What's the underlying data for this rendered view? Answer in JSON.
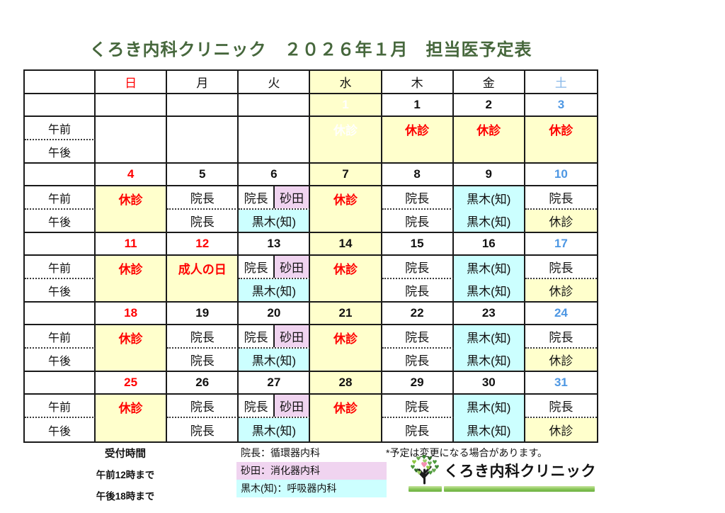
{
  "title": "くろき内科クリニック　２０２６年１月　担当医予定表",
  "colors": {
    "title_green": "#46673C",
    "closed_red": "#FF0000",
    "saturday_blue": "#4D97E3",
    "saturday_header_blue": "#87B7E8",
    "wednesday_yellow": "#FFFFCC",
    "kuroki_cyan": "#CCFFFF",
    "sunada_pink": "#F0D4F0",
    "ghost_white": "#FFFFFF"
  },
  "calendar": {
    "day_headers": [
      {
        "label": "日",
        "style": "sun"
      },
      {
        "label": "月"
      },
      {
        "label": "火"
      },
      {
        "label": "水",
        "bg": "yellow"
      },
      {
        "label": "木"
      },
      {
        "label": "金"
      },
      {
        "label": "土",
        "style": "sat"
      }
    ],
    "row_labels": {
      "am": "午前",
      "pm": "午後"
    },
    "weeks": [
      {
        "dates": [
          {
            "text": ""
          },
          {
            "text": ""
          },
          {
            "text": ""
          },
          {
            "text": "1",
            "ghost": true
          },
          {
            "text": "1"
          },
          {
            "text": "2"
          },
          {
            "text": "3"
          }
        ],
        "days": [
          {
            "kind": "merge",
            "bg": "white",
            "text": ""
          },
          {
            "kind": "merge",
            "bg": "white",
            "text": ""
          },
          {
            "kind": "merge",
            "bg": "white",
            "text": ""
          },
          {
            "kind": "merge",
            "bg": "yellow",
            "text": "休診",
            "style": "ghost"
          },
          {
            "kind": "merge",
            "bg": "yellow",
            "text": "休診",
            "style": "closed"
          },
          {
            "kind": "merge",
            "bg": "yellow",
            "text": "休診",
            "style": "closed"
          },
          {
            "kind": "merge",
            "bg": "yellow",
            "text": "休診",
            "style": "closed"
          }
        ]
      },
      {
        "dates": [
          {
            "text": "4"
          },
          {
            "text": "5"
          },
          {
            "text": "6"
          },
          {
            "text": "7"
          },
          {
            "text": "8"
          },
          {
            "text": "9"
          },
          {
            "text": "10"
          }
        ],
        "days": [
          {
            "kind": "merge",
            "bg": "yellow",
            "text": "休診",
            "style": "closed"
          },
          {
            "kind": "ampm",
            "am": {
              "text": "院長"
            },
            "pm": {
              "text": "院長"
            },
            "sep": "dotted"
          },
          {
            "kind": "split",
            "am_left": {
              "text": "院長"
            },
            "am_right": {
              "text": "砂田",
              "bg": "pink"
            },
            "pm": {
              "text": "黒木(知)",
              "bg": "cyan"
            },
            "sep": "dotted"
          },
          {
            "kind": "merge",
            "bg": "yellow",
            "text": "休診",
            "style": "closed"
          },
          {
            "kind": "ampm",
            "am": {
              "text": "院長"
            },
            "pm": {
              "text": "院長"
            },
            "sep": "dotted"
          },
          {
            "kind": "ampm",
            "am": {
              "text": "黒木(知)",
              "bg": "cyan"
            },
            "pm": {
              "text": "黒木(知)",
              "bg": "cyan"
            },
            "sep": "none"
          },
          {
            "kind": "ampm",
            "am": {
              "text": "院長"
            },
            "pm": {
              "text": "休診",
              "bg": "yellow"
            },
            "sep": "dotted"
          }
        ]
      },
      {
        "dates": [
          {
            "text": "11"
          },
          {
            "text": "12",
            "style": "sun"
          },
          {
            "text": "13"
          },
          {
            "text": "14"
          },
          {
            "text": "15"
          },
          {
            "text": "16"
          },
          {
            "text": "17"
          }
        ],
        "days": [
          {
            "kind": "merge",
            "bg": "yellow",
            "text": "休診",
            "style": "closed"
          },
          {
            "kind": "merge",
            "bg": "yellow",
            "text": "成人の日",
            "style": "closed"
          },
          {
            "kind": "split",
            "am_left": {
              "text": "院長"
            },
            "am_right": {
              "text": "砂田",
              "bg": "pink"
            },
            "pm": {
              "text": "黒木(知)",
              "bg": "cyan"
            },
            "sep": "dotted"
          },
          {
            "kind": "merge",
            "bg": "yellow",
            "text": "休診",
            "style": "closed"
          },
          {
            "kind": "ampm",
            "am": {
              "text": "院長"
            },
            "pm": {
              "text": "院長"
            },
            "sep": "dotted"
          },
          {
            "kind": "ampm",
            "am": {
              "text": "黒木(知)",
              "bg": "cyan"
            },
            "pm": {
              "text": "黒木(知)",
              "bg": "cyan"
            },
            "sep": "none"
          },
          {
            "kind": "ampm",
            "am": {
              "text": "院長"
            },
            "pm": {
              "text": "休診",
              "bg": "yellow"
            },
            "sep": "dotted"
          }
        ]
      },
      {
        "dates": [
          {
            "text": "18"
          },
          {
            "text": "19"
          },
          {
            "text": "20"
          },
          {
            "text": "21"
          },
          {
            "text": "22"
          },
          {
            "text": "23"
          },
          {
            "text": "24"
          }
        ],
        "days": [
          {
            "kind": "merge",
            "bg": "yellow",
            "text": "休診",
            "style": "closed"
          },
          {
            "kind": "ampm",
            "am": {
              "text": "院長"
            },
            "pm": {
              "text": "院長"
            },
            "sep": "dotted"
          },
          {
            "kind": "split",
            "am_left": {
              "text": "院長"
            },
            "am_right": {
              "text": "砂田",
              "bg": "pink"
            },
            "pm": {
              "text": "黒木(知)",
              "bg": "cyan"
            },
            "sep": "dotted"
          },
          {
            "kind": "merge",
            "bg": "yellow",
            "text": "休診",
            "style": "closed"
          },
          {
            "kind": "ampm",
            "am": {
              "text": "院長"
            },
            "pm": {
              "text": "院長"
            },
            "sep": "dotted"
          },
          {
            "kind": "ampm",
            "am": {
              "text": "黒木(知)",
              "bg": "cyan"
            },
            "pm": {
              "text": "黒木(知)",
              "bg": "cyan"
            },
            "sep": "none"
          },
          {
            "kind": "ampm",
            "am": {
              "text": "院長"
            },
            "pm": {
              "text": "休診",
              "bg": "yellow"
            },
            "sep": "dotted"
          }
        ]
      },
      {
        "dates": [
          {
            "text": "25"
          },
          {
            "text": "26"
          },
          {
            "text": "27"
          },
          {
            "text": "28"
          },
          {
            "text": "29"
          },
          {
            "text": "30"
          },
          {
            "text": "31"
          }
        ],
        "days": [
          {
            "kind": "merge",
            "bg": "yellow",
            "text": "休診",
            "style": "closed"
          },
          {
            "kind": "ampm",
            "am": {
              "text": "院長"
            },
            "pm": {
              "text": "院長"
            },
            "sep": "dotted"
          },
          {
            "kind": "split",
            "am_left": {
              "text": "院長"
            },
            "am_right": {
              "text": "砂田",
              "bg": "pink"
            },
            "pm": {
              "text": "黒木(知)",
              "bg": "cyan"
            },
            "sep": "dotted"
          },
          {
            "kind": "merge",
            "bg": "yellow",
            "text": "休診",
            "style": "closed"
          },
          {
            "kind": "ampm",
            "am": {
              "text": "院長"
            },
            "pm": {
              "text": "院長"
            },
            "sep": "dotted"
          },
          {
            "kind": "ampm",
            "am": {
              "text": "黒木(知)",
              "bg": "cyan"
            },
            "pm": {
              "text": "黒木(知)",
              "bg": "cyan"
            },
            "sep": "none"
          },
          {
            "kind": "ampm",
            "am": {
              "text": "院長"
            },
            "pm": {
              "text": "休診",
              "bg": "yellow"
            },
            "sep": "dotted"
          }
        ]
      }
    ]
  },
  "reception": {
    "title": "受付時間",
    "lines": [
      "午前12時まで",
      "午後18時まで"
    ]
  },
  "doctor_legend": [
    {
      "label": "院長：循環器内科",
      "bg": "none"
    },
    {
      "label": "砂田：消化器内科",
      "bg": "pink"
    },
    {
      "label": "黒木(知)：呼吸器内科",
      "bg": "cyan"
    }
  ],
  "footnote": "*予定は変更になる場合があります。",
  "logo": {
    "text": "くろき内科クリニック"
  }
}
